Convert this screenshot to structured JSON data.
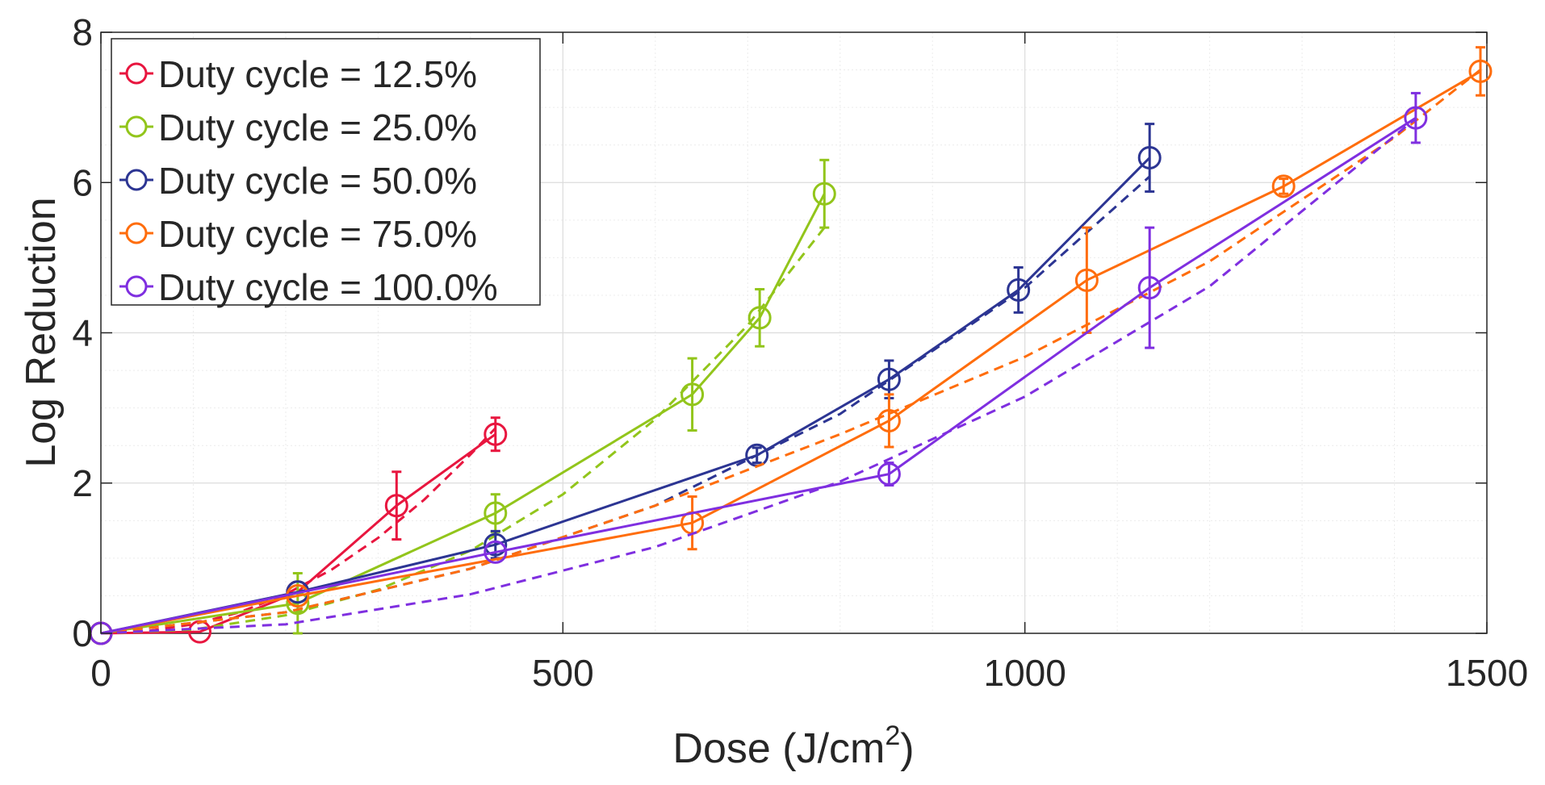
{
  "chart_data": {
    "type": "line",
    "title": "",
    "xlabel": "Dose (J/cm",
    "xlabel_superscript": "2",
    "xlabel_suffix": ")",
    "ylabel": "Log Reduction",
    "xlim": [
      0,
      1500
    ],
    "ylim": [
      0,
      8
    ],
    "xticks": [
      0,
      500,
      1000,
      1500
    ],
    "xtick_labels": [
      "0",
      "500",
      "1000",
      "1500"
    ],
    "yticks": [
      0,
      2,
      4,
      6,
      8
    ],
    "ytick_labels": [
      "0",
      "2",
      "4",
      "6",
      "8"
    ],
    "x_minor_step": 100,
    "y_minor_step": 0.5,
    "grid": true,
    "legend_position": "top-left",
    "series": [
      {
        "name": "Duty cycle = 12.5%",
        "color": "#e8163f",
        "x": [
          0,
          107,
          213,
          320,
          427
        ],
        "y": [
          0,
          0.02,
          0.55,
          1.7,
          2.65
        ],
        "err": [
          0,
          0,
          0,
          0.45,
          0.22
        ],
        "fit_x": [
          0,
          50,
          100,
          150,
          200,
          250,
          300,
          350,
          400,
          427
        ],
        "fit_y": [
          0,
          0.03,
          0.12,
          0.28,
          0.52,
          0.85,
          1.27,
          1.78,
          2.38,
          2.73
        ]
      },
      {
        "name": "Duty cycle = 25.0%",
        "color": "#92c51b",
        "x": [
          0,
          213,
          427,
          640,
          713,
          783
        ],
        "y": [
          0,
          0.4,
          1.6,
          3.18,
          4.2,
          5.85
        ],
        "err": [
          0,
          0.4,
          0.25,
          0.48,
          0.38,
          0.45
        ],
        "fit_x": [
          0,
          100,
          200,
          300,
          400,
          500,
          600,
          700,
          783
        ],
        "fit_y": [
          0,
          0.05,
          0.24,
          0.58,
          1.1,
          1.85,
          2.85,
          4.1,
          5.4
        ]
      },
      {
        "name": "Duty cycle = 50.0%",
        "color": "#2c3593",
        "x": [
          0,
          213,
          427,
          710,
          853,
          993,
          1135
        ],
        "y": [
          0,
          0.55,
          1.18,
          2.37,
          3.38,
          4.57,
          6.33
        ],
        "err": [
          0,
          0,
          0.18,
          0.1,
          0.25,
          0.3,
          0.45
        ],
        "fit_x": [
          0,
          200,
          400,
          600,
          800,
          1000,
          1135
        ],
        "fit_y": [
          0,
          0.28,
          0.86,
          1.7,
          2.92,
          4.6,
          6.08
        ]
      },
      {
        "name": "Duty cycle = 75.0%",
        "color": "#ff6d0c",
        "x": [
          0,
          213,
          640,
          853,
          1067,
          1280,
          1493
        ],
        "y": [
          0,
          0.5,
          1.47,
          2.83,
          4.7,
          5.95,
          7.48
        ],
        "err": [
          0,
          0,
          0.35,
          0.35,
          0.7,
          0.1,
          0.32
        ],
        "fit_x": [
          0,
          200,
          400,
          600,
          800,
          1000,
          1200,
          1400,
          1493
        ],
        "fit_y": [
          0,
          0.28,
          0.86,
          1.7,
          2.65,
          3.68,
          4.95,
          6.6,
          7.5
        ]
      },
      {
        "name": "Duty cycle = 100.0%",
        "color": "#7f2fe0",
        "x": [
          0,
          427,
          853,
          1135,
          1423
        ],
        "y": [
          0,
          1.08,
          2.12,
          4.6,
          6.86
        ],
        "err": [
          0,
          0,
          0.15,
          0.8,
          0.33
        ],
        "fit_x": [
          0,
          200,
          400,
          600,
          800,
          1000,
          1200,
          1423
        ],
        "fit_y": [
          0,
          0.12,
          0.52,
          1.15,
          2.02,
          3.15,
          4.62,
          6.85
        ]
      }
    ]
  }
}
